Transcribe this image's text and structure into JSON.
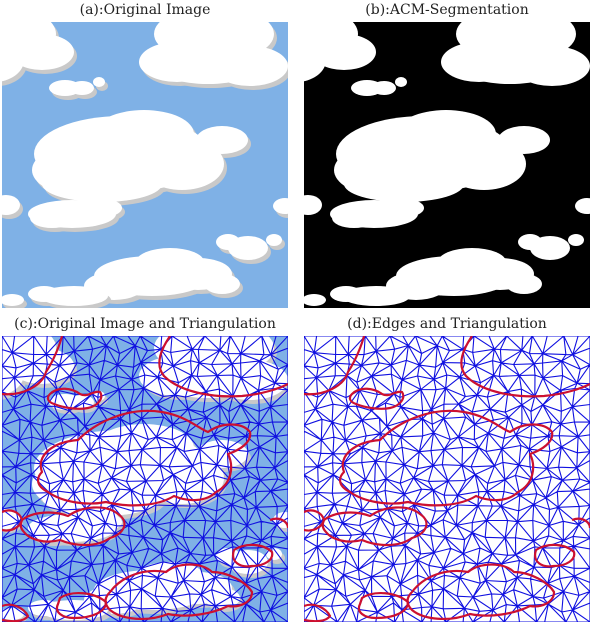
{
  "panels": {
    "a": {
      "caption": "(a):Original Image"
    },
    "b": {
      "caption": "(b):ACM-Segmentation"
    },
    "c": {
      "caption": "(c):Original Image and Triangulation"
    },
    "d": {
      "caption": "(d):Edges and Triangulation"
    }
  },
  "colors": {
    "sky": "#7fb1e6",
    "cloud": "#ffffff",
    "cloud_shadow": "#c9c9c9",
    "segmentation_background": "#000000",
    "mesh": "#1010e0",
    "edge": "#cc1030"
  }
}
